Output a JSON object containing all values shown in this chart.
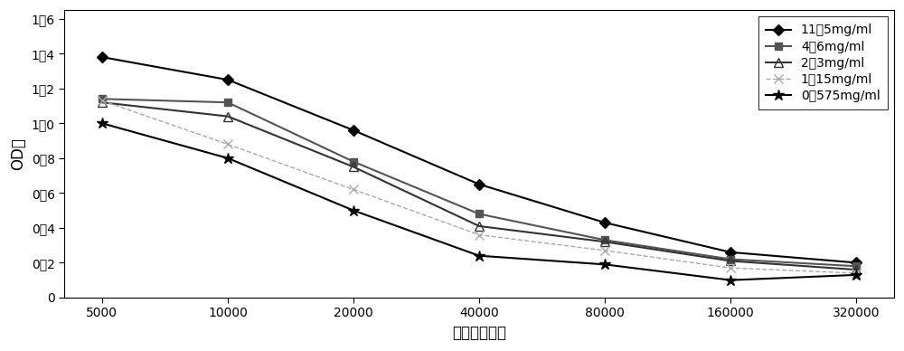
{
  "x": [
    5000,
    10000,
    20000,
    40000,
    80000,
    160000,
    320000
  ],
  "series": [
    {
      "label": "11．5mg/ml",
      "values": [
        1.38,
        1.25,
        0.96,
        0.65,
        0.43,
        0.26,
        0.2
      ],
      "color": "#000000",
      "marker": "D",
      "markersize": 6,
      "linestyle": "-",
      "linewidth": 1.5,
      "markerfacecolor": "#000000",
      "markeredgecolor": "#000000"
    },
    {
      "label": "4．6mg/ml",
      "values": [
        1.14,
        1.12,
        0.78,
        0.48,
        0.33,
        0.22,
        0.18
      ],
      "color": "#555555",
      "marker": "s",
      "markersize": 6,
      "linestyle": "-",
      "linewidth": 1.5,
      "markerfacecolor": "#555555",
      "markeredgecolor": "#555555"
    },
    {
      "label": "2．3mg/ml",
      "values": [
        1.12,
        1.04,
        0.75,
        0.41,
        0.32,
        0.21,
        0.16
      ],
      "color": "#333333",
      "marker": "^",
      "markersize": 7,
      "linestyle": "-",
      "linewidth": 1.5,
      "markerfacecolor": "none",
      "markeredgecolor": "#333333"
    },
    {
      "label": "1．15mg/ml",
      "values": [
        1.13,
        0.88,
        0.62,
        0.36,
        0.27,
        0.17,
        0.14
      ],
      "color": "#aaaaaa",
      "marker": "x",
      "markersize": 7,
      "linestyle": "--",
      "linewidth": 1.0,
      "markerfacecolor": "#aaaaaa",
      "markeredgecolor": "#aaaaaa"
    },
    {
      "label": "0．575mg/ml",
      "values": [
        1.0,
        0.8,
        0.5,
        0.24,
        0.19,
        0.1,
        0.13
      ],
      "color": "#000000",
      "marker": "*",
      "markersize": 9,
      "linestyle": "-",
      "linewidth": 1.5,
      "markerfacecolor": "#000000",
      "markeredgecolor": "#000000"
    }
  ],
  "xlabel": "血清稀释倍数",
  "ylabel": "OD値",
  "ylim": [
    0,
    1.65
  ],
  "yticks": [
    0,
    0.2,
    0.4,
    0.6,
    0.8,
    1.0,
    1.2,
    1.4,
    1.6
  ],
  "ytick_labels": [
    "0",
    "0．2",
    "0．4",
    "0．6",
    "0．8",
    "1．0",
    "1．2",
    "1．4",
    "1．6"
  ],
  "background_color": "#ffffff",
  "legend_fontsize": 10,
  "axis_fontsize": 12,
  "tick_fontsize": 10
}
